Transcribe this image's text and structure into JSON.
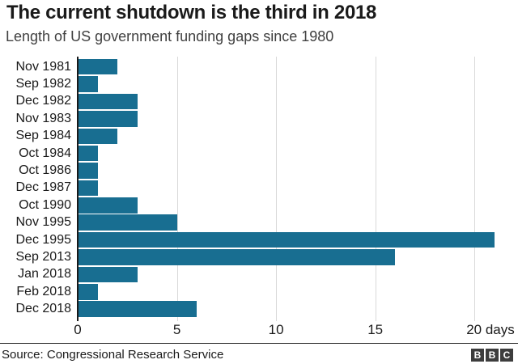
{
  "header": {
    "title": "The current shutdown is the third in 2018",
    "subtitle": "Length of US government funding gaps since 1980"
  },
  "chart_data": {
    "type": "bar",
    "orientation": "horizontal",
    "title": "The current shutdown is the third in 2018",
    "subtitle": "Length of US government funding gaps since 1980",
    "categories": [
      "Nov 1981",
      "Sep 1982",
      "Dec 1982",
      "Nov 1983",
      "Sep 1984",
      "Oct 1984",
      "Oct 1986",
      "Dec 1987",
      "Oct 1990",
      "Nov 1995",
      "Dec 1995",
      "Sep 2013",
      "Jan 2018",
      "Feb 2018",
      "Dec 2018"
    ],
    "values": [
      2,
      1,
      3,
      3,
      2,
      1,
      1,
      1,
      3,
      5,
      21,
      16,
      3,
      1,
      6
    ],
    "unit": "days",
    "xlabel": "",
    "ylabel": "",
    "xlim": [
      0,
      21.5
    ],
    "x_ticks": [
      0,
      5,
      10,
      15,
      20
    ],
    "x_tick_labels": [
      "0",
      "5",
      "10",
      "15",
      "20 days"
    ],
    "grid": true,
    "legend": false,
    "bar_color": "#186e91",
    "gridline_color": "#d9d9d9",
    "axis_line_color": "#1a1a1a"
  },
  "footer": {
    "source": "Source: Congressional Research Service",
    "logo": {
      "name": "BBC",
      "letters": [
        "B",
        "B",
        "C"
      ]
    }
  }
}
